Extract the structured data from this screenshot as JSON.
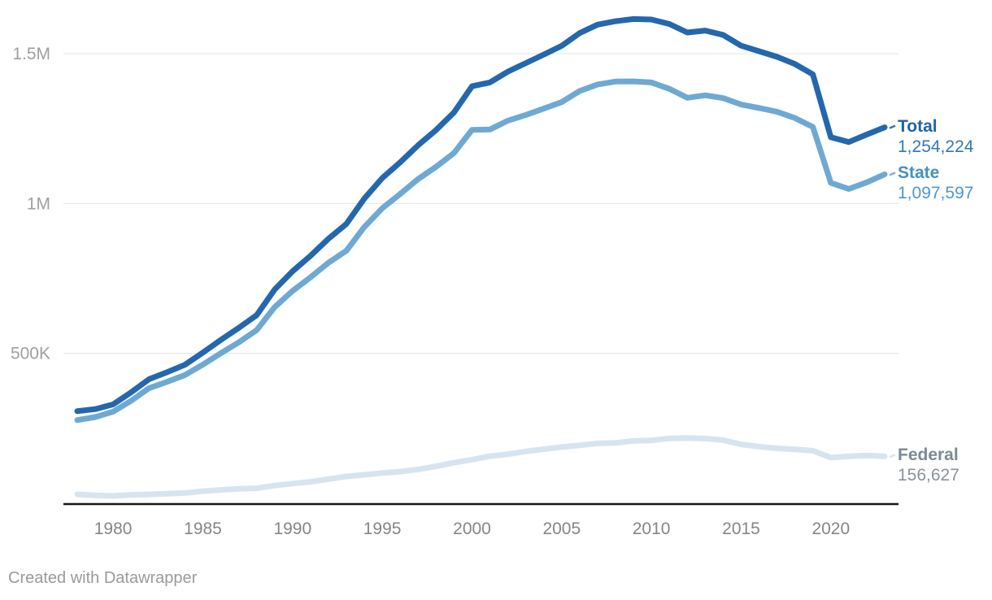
{
  "chart_data": {
    "type": "line",
    "title": "",
    "xlabel": "",
    "ylabel": "",
    "grid": "horizontal",
    "legend_position": "line-end-labels",
    "xlim": [
      1978,
      2023
    ],
    "ylim": [
      0,
      1650000
    ],
    "x": [
      1978,
      1979,
      1980,
      1981,
      1982,
      1983,
      1984,
      1985,
      1986,
      1987,
      1988,
      1989,
      1990,
      1991,
      1992,
      1993,
      1994,
      1995,
      1996,
      1997,
      1998,
      1999,
      2000,
      2001,
      2002,
      2003,
      2004,
      2005,
      2006,
      2007,
      2008,
      2009,
      2010,
      2011,
      2012,
      2013,
      2014,
      2015,
      2016,
      2017,
      2018,
      2019,
      2020,
      2021,
      2022,
      2023
    ],
    "x_ticks": [
      1980,
      1985,
      1990,
      1995,
      2000,
      2005,
      2010,
      2015,
      2020
    ],
    "y_ticks": [
      {
        "value": 500000,
        "label": "500K"
      },
      {
        "value": 1000000,
        "label": "1M"
      },
      {
        "value": 1500000,
        "label": "1.5M"
      }
    ],
    "series": [
      {
        "name": "Total",
        "value_label": "1,254,224",
        "color": "#2467ad",
        "name_color": "#1e64a9",
        "value_color": "#3277b7",
        "values": [
          307276,
          314006,
          329821,
          369930,
          413806,
          436855,
          462002,
          502752,
          544972,
          585084,
          627600,
          712967,
          773919,
          825559,
          882500,
          932074,
          1016691,
          1085022,
          1137722,
          1194581,
          1245402,
          1304074,
          1391261,
          1404032,
          1440144,
          1468601,
          1497100,
          1525910,
          1568674,
          1596835,
          1608282,
          1615487,
          1613803,
          1598968,
          1570397,
          1576950,
          1562319,
          1526603,
          1508129,
          1489363,
          1465158,
          1430805,
          1221203,
          1205100,
          1230143,
          1254224
        ]
      },
      {
        "name": "State",
        "value_label": "1,097,597",
        "color": "#6ea9d3",
        "name_color": "#4590c4",
        "value_color": "#4f97c9",
        "values": [
          277473,
          287635,
          305458,
          341797,
          384133,
          404929,
          427739,
          462529,
          500564,
          536784,
          577672,
          653918,
          708393,
          753951,
          802241,
          842487,
          921657,
          984064,
          1032178,
          1081608,
          1122361,
          1168828,
          1245845,
          1247039,
          1276616,
          1295542,
          1316772,
          1338292,
          1375628,
          1397217,
          1407002,
          1407369,
          1404032,
          1382606,
          1352582,
          1361084,
          1351752,
          1330148,
          1318937,
          1306305,
          1285260,
          1255689,
          1069047,
          1048558,
          1070531,
          1097597
        ]
      },
      {
        "name": "Federal",
        "value_label": "156,627",
        "color": "#d7e4f0",
        "name_color": "#7b8a96",
        "value_color": "#8a929b",
        "values": [
          29803,
          26371,
          24363,
          28133,
          29673,
          31926,
          34263,
          40223,
          44408,
          48300,
          49928,
          59049,
          65526,
          71608,
          80259,
          89587,
          95034,
          100958,
          105544,
          112973,
          123041,
          135246,
          145416,
          156993,
          163528,
          173059,
          180328,
          187618,
          193046,
          199618,
          201280,
          208118,
          209771,
          216362,
          217815,
          215866,
          210567,
          196455,
          189192,
          183058,
          179898,
          175116,
          152156,
          156542,
          159612,
          156627
        ]
      }
    ],
    "style": {
      "gridline_color": "#e3e3e3",
      "axis_line_color": "#161616",
      "y_tick_color": "#a0a0a0",
      "x_tick_color": "#868686"
    }
  },
  "footer": {
    "credit": "Created with Datawrapper"
  }
}
